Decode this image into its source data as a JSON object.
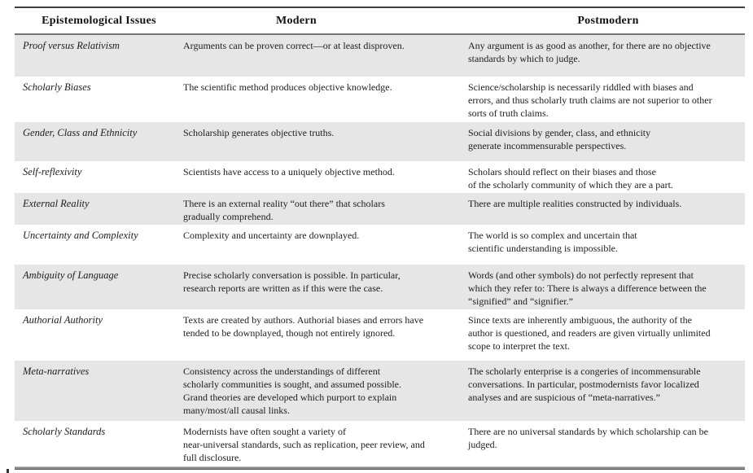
{
  "colors": {
    "row_shade": "#e6e6e6",
    "top_rule": "#3f3f3f",
    "header_rule": "#757575",
    "bottom_rule": "#8a8a8a",
    "text": "#1c1c1c"
  },
  "table": {
    "headers": [
      "Epistemological Issues",
      "Modern",
      "Postmodern"
    ],
    "rows": [
      {
        "issue": "Proof versus Relativism",
        "modern": "Arguments can be proven correct—or at least disproven.",
        "postmodern": "Any argument is as good as another, for there are no objective\nstandards by which to judge."
      },
      {
        "issue": "Scholarly Biases",
        "modern": "The scientific method produces objective knowledge.",
        "postmodern": "Science/scholarship is necessarily riddled with biases and\nerrors, and thus scholarly truth claims are not superior to other\nsorts of truth claims."
      },
      {
        "issue": "Gender, Class and Ethnicity",
        "modern": "Scholarship generates objective truths.",
        "postmodern": "Social divisions by gender, class, and ethnicity\ngenerate incommensurable perspectives."
      },
      {
        "issue": "Self-reflexivity",
        "modern": "Scientists have access to a uniquely objective method.",
        "postmodern": "Scholars should reflect on their biases and those\nof the scholarly community of which they are a part."
      },
      {
        "issue": "External Reality",
        "modern": "There is an external reality “out there” that scholars\ngradually comprehend.",
        "postmodern": "There are multiple realities constructed by individuals."
      },
      {
        "issue": "Uncertainty and Complexity",
        "modern": "Complexity and uncertainty are downplayed.",
        "postmodern": "The world is so complex and uncertain that\nscientific understanding is impossible."
      },
      {
        "issue": "Ambiguity of Language",
        "modern": "Precise scholarly conversation is possible. In particular,\nresearch reports are written as if this were the case.",
        "postmodern": "Words (and other symbols) do not perfectly represent that\nwhich they refer to: There is always a difference between the\n“signified” and “signifier.”"
      },
      {
        "issue": "Authorial Authority",
        "modern": "Texts are created by authors. Authorial biases and errors have\ntended to be downplayed, though not entirely ignored.",
        "postmodern": "Since texts are inherently ambiguous, the authority of the\nauthor is questioned, and readers are given virtually unlimited\nscope to interpret the text."
      },
      {
        "issue": "Meta-narratives",
        "modern": "Consistency across the understandings of different\nscholarly communities is sought, and assumed possible.\nGrand theories are developed which purport to explain\nmany/most/all causal links.",
        "postmodern": "The scholarly enterprise is a congeries of incommensurable\nconversations. In particular, postmodernists favor localized\nanalyses and are suspicious of “meta-narratives.”"
      },
      {
        "issue": "Scholarly Standards",
        "modern": "Modernists have often sought a variety of\nnear-universal standards, such as replication, peer review, and\nfull disclosure.",
        "postmodern": "There are no universal standards by which scholarship can be\njudged."
      }
    ]
  }
}
